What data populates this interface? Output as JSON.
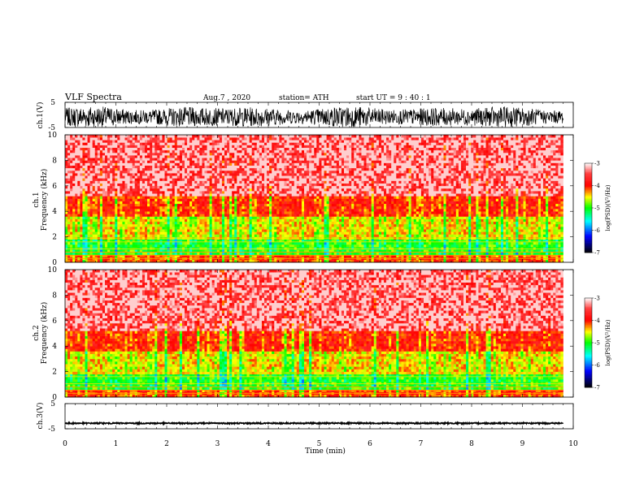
{
  "header": {
    "title": "VLF  Spectra",
    "date": "Aug.7  , 2020",
    "station": "station= ATH",
    "start": "start  UT  =    9  : 40 : 1"
  },
  "colors": {
    "background": "#ffffff",
    "axis": "#000000",
    "trace": "#000000",
    "colormap": [
      "#000000",
      "#0000ff",
      "#00ffff",
      "#00ff00",
      "#ffff00",
      "#ff0000",
      "#ffffff"
    ]
  },
  "chart_data": [
    {
      "type": "line",
      "name": "ch1-waveform",
      "ylabel": "ch.1(V)",
      "ylim": [
        -5,
        5
      ],
      "yticks": [
        "5",
        "-5"
      ],
      "xlim": [
        0,
        10
      ]
    },
    {
      "type": "heatmap",
      "name": "ch1-spectrogram",
      "ylabel_top": "ch.1",
      "ylabel": "Frequency  (kHz)",
      "ylim": [
        0,
        10
      ],
      "yticks": [
        "0",
        "2",
        "4",
        "6",
        "8",
        "10"
      ],
      "xlim": [
        0,
        10
      ],
      "colorbar": {
        "label": "log(PSD)(V²/Hz)",
        "range": [
          -7,
          -3
        ],
        "ticks": [
          "-3",
          "-4",
          "-5",
          "-6",
          "-7"
        ]
      }
    },
    {
      "type": "heatmap",
      "name": "ch2-spectrogram",
      "ylabel_top": "ch.2",
      "ylabel": "Frequency  (kHz)",
      "ylim": [
        0,
        10
      ],
      "yticks": [
        "0",
        "2",
        "4",
        "6",
        "8",
        "10"
      ],
      "xlim": [
        0,
        10
      ],
      "colorbar": {
        "label": "log(PSD)(V²/Hz)",
        "range": [
          -7,
          -3
        ],
        "ticks": [
          "-3",
          "-4",
          "-5",
          "-6",
          "-7"
        ]
      }
    },
    {
      "type": "line",
      "name": "ch3-waveform",
      "ylabel": "ch.3(V)",
      "ylim": [
        -5,
        5
      ],
      "yticks": [
        "5",
        "-5"
      ],
      "xlim": [
        0,
        10
      ],
      "xlabel": "Time  (min)",
      "xticks": [
        "0",
        "1",
        "2",
        "3",
        "4",
        "5",
        "6",
        "7",
        "8",
        "9",
        "10"
      ]
    }
  ]
}
